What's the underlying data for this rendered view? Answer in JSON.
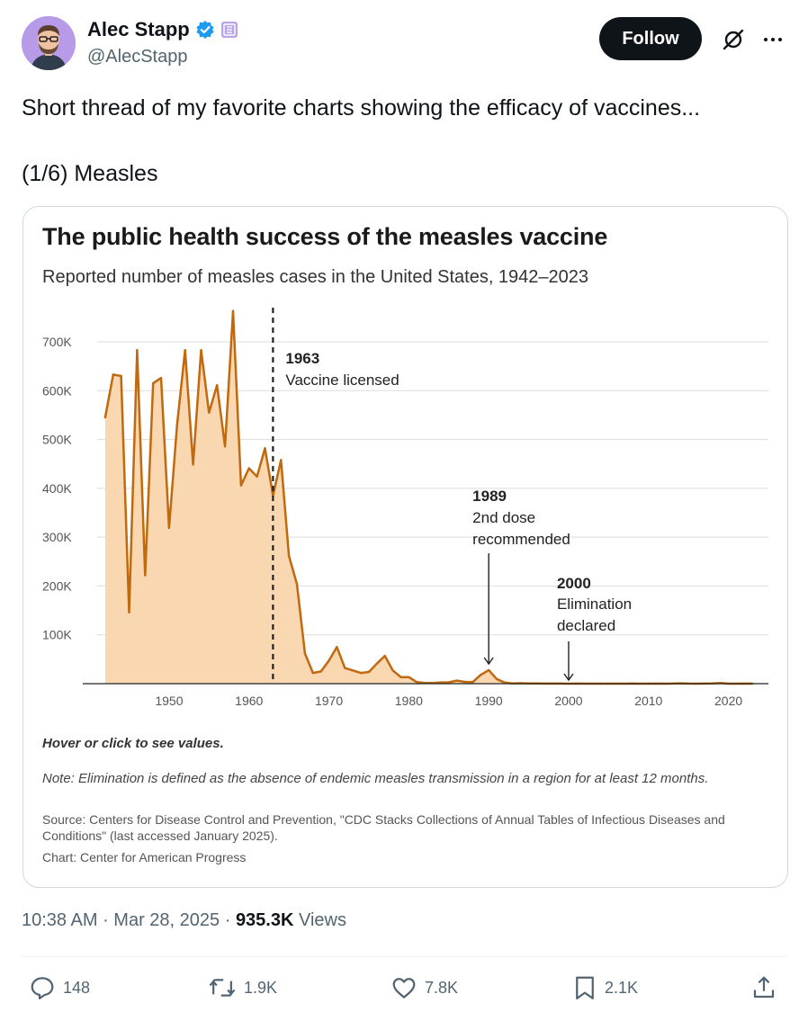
{
  "author": {
    "name": "Alec Stapp",
    "handle": "@AlecStapp"
  },
  "buttons": {
    "follow": "Follow"
  },
  "icons": {
    "verified": "verified-badge-icon",
    "affiliate": "affiliate-badge-icon",
    "grok": "grok-icon",
    "more": "more-options-icon",
    "reply": "reply-icon",
    "retweet": "retweet-icon",
    "like": "like-icon",
    "bookmark": "bookmark-icon",
    "share": "share-icon"
  },
  "tweet": {
    "line1": "Short thread of my favorite charts showing the efficacy of vaccines...",
    "line2": "(1/6) Measles"
  },
  "card": {
    "hover_note": "Hover or click to see values.",
    "note": "Note: Elimination is defined as the absence of endemic measles transmission in a region for at least 12 months.",
    "source": "Source: Centers for Disease Control and Prevention, \"CDC Stacks Collections of Annual Tables of Infectious Diseases and Conditions\" (last accessed January 2025).",
    "credit": "Chart: Center for American Progress"
  },
  "chart_data": {
    "type": "area",
    "title": "The public health success of the measles vaccine",
    "subtitle": "Reported number of measles cases in the United States, 1942–2023",
    "xlabel": "",
    "ylabel": "",
    "xlim": [
      1941,
      2025
    ],
    "ylim": [
      0,
      700000
    ],
    "x_ticks": [
      1950,
      1960,
      1970,
      1980,
      1990,
      2000,
      2010,
      2020
    ],
    "x_tick_labels": [
      "1950",
      "1960",
      "1970",
      "1980",
      "1990",
      "2000",
      "2010",
      "2020"
    ],
    "y_ticks": [
      100000,
      200000,
      300000,
      400000,
      500000,
      600000,
      700000
    ],
    "y_tick_labels": [
      "100K",
      "200K",
      "300K",
      "400K",
      "500K",
      "600K",
      "700K"
    ],
    "grid": true,
    "series_color": "#c0690f",
    "fill_color": "#f9d7b0",
    "series": [
      {
        "x": [
          1942,
          1943,
          1944,
          1945,
          1946,
          1947,
          1948,
          1949,
          1950,
          1951,
          1952,
          1953,
          1954,
          1955,
          1956,
          1957,
          1958,
          1959,
          1960,
          1961,
          1962,
          1963,
          1964,
          1965,
          1966,
          1967,
          1968,
          1969,
          1970,
          1971,
          1972,
          1973,
          1974,
          1975,
          1976,
          1977,
          1978,
          1979,
          1980,
          1981,
          1982,
          1983,
          1984,
          1985,
          1986,
          1987,
          1988,
          1989,
          1990,
          1991,
          1992,
          1993,
          1994,
          1995,
          1996,
          1997,
          1998,
          1999,
          2000,
          2001,
          2002,
          2003,
          2004,
          2005,
          2006,
          2007,
          2008,
          2009,
          2010,
          2011,
          2012,
          2013,
          2014,
          2015,
          2016,
          2017,
          2018,
          2019,
          2020,
          2021,
          2022,
          2023
        ],
        "y": [
          545000,
          633000,
          630000,
          146000,
          683000,
          222000,
          615000,
          626000,
          319000,
          530000,
          683000,
          449000,
          683000,
          555000,
          611000,
          486000,
          763000,
          406000,
          441000,
          424000,
          482000,
          385000,
          458000,
          262000,
          204000,
          62000,
          22000,
          25000,
          47000,
          75000,
          32000,
          27000,
          22000,
          24000,
          41000,
          57000,
          27000,
          13500,
          13500,
          3100,
          1700,
          1500,
          2600,
          2800,
          6300,
          3700,
          3400,
          18000,
          27800,
          9600,
          2200,
          300,
          960,
          300,
          510,
          140,
          100,
          100,
          86,
          116,
          44,
          56,
          37,
          66,
          55,
          43,
          140,
          71,
          63,
          220,
          55,
          187,
          667,
          188,
          86,
          120,
          375,
          1282,
          13,
          49,
          121,
          59
        ]
      }
    ],
    "annotations": [
      {
        "id": "vaccine",
        "year_label": "1963",
        "text": "Vaccine licensed",
        "x": 1963
      },
      {
        "id": "second-dose",
        "year_label": "1989",
        "text_line1": "2nd dose",
        "text_line2": "recommended",
        "x": 1990
      },
      {
        "id": "elimination",
        "year_label": "2000",
        "text_line1": "Elimination",
        "text_line2": "declared",
        "x": 2000
      }
    ]
  },
  "footer": {
    "time": "10:38 AM",
    "date": "Mar 28, 2025",
    "views_count": "935.3K",
    "views_label": "Views"
  },
  "actions": {
    "replies": "148",
    "retweets": "1.9K",
    "likes": "7.8K",
    "bookmarks": "2.1K"
  }
}
